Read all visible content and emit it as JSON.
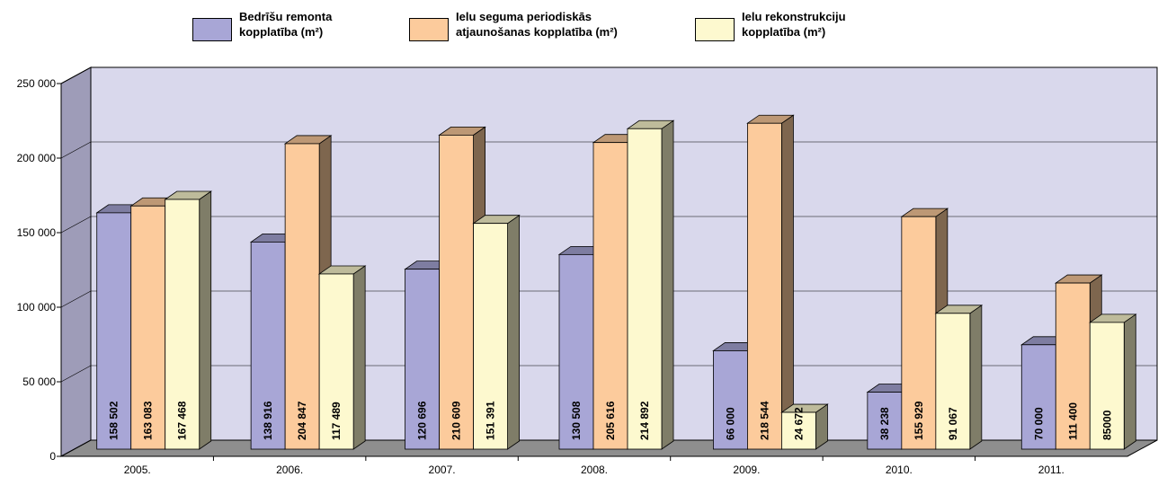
{
  "chart_data": {
    "type": "bar",
    "categories": [
      "2005.",
      "2006.",
      "2007.",
      "2008.",
      "2009.",
      "2010.",
      "2011."
    ],
    "series": [
      {
        "name": "Bedrīšu remonta kopplatība (m²)",
        "color": "#a8a6d6",
        "values": [
          158502,
          138916,
          120696,
          130508,
          66000,
          38238,
          70000
        ],
        "labels": [
          "158 502",
          "138 916",
          "120 696",
          "130 508",
          "66 000",
          "38 238",
          "70 000"
        ]
      },
      {
        "name": "Ielu seguma periodiskās atjaunošanas kopplatība (m²)",
        "color": "#fccb9c",
        "values": [
          163083,
          204847,
          210609,
          205616,
          218544,
          155929,
          111400
        ],
        "labels": [
          "163 083",
          "204 847",
          "210 609",
          "205 616",
          "218 544",
          "155 929",
          "111 400"
        ]
      },
      {
        "name": "Ielu rekonstrukciju kopplatība (m²)",
        "color": "#fdf9cf",
        "values": [
          167468,
          117489,
          151391,
          214892,
          24672,
          91067,
          85000
        ],
        "labels": [
          "167 468",
          "117 489",
          "151 391",
          "214 892",
          "24 672",
          "91 067",
          "85000"
        ]
      }
    ],
    "yticks": [
      "0",
      "50 000",
      "100 000",
      "150 000",
      "200 000",
      "250 000"
    ],
    "ylim": [
      0,
      250000
    ],
    "grid": true,
    "legend": "top",
    "chart_type_detail": "3d clustered column",
    "wall_color": "#d9d8ec",
    "floor_color": "#8e8e8e"
  },
  "legend": {
    "items": [
      {
        "line1": "Bedrīšu remonta",
        "line2": "kopplatība (m²)"
      },
      {
        "line1": "Ielu seguma periodiskās",
        "line2": "atjaunošanas kopplatība (m²)"
      },
      {
        "line1": "Ielu rekonstrukciju",
        "line2": "kopplatība (m²)"
      }
    ]
  }
}
